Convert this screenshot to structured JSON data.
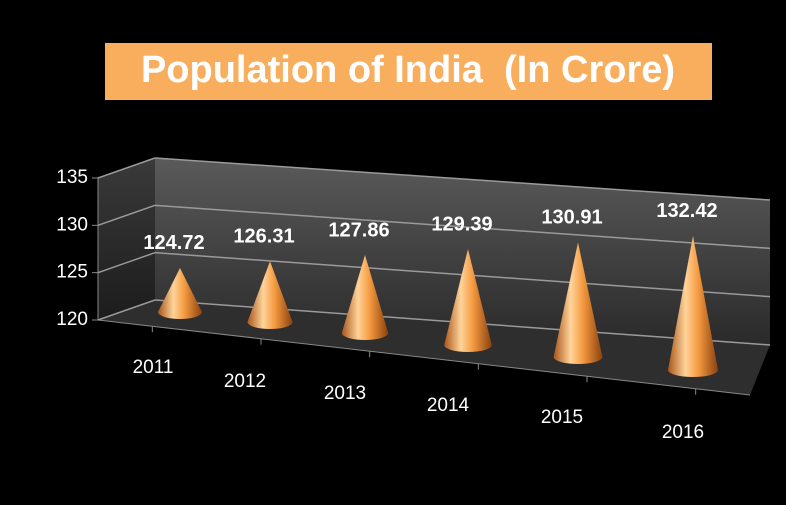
{
  "chart_data": {
    "type": "cone",
    "title": "Population of India  (In Crore)",
    "categories": [
      "2011",
      "2012",
      "2013",
      "2014",
      "2015",
      "2016"
    ],
    "values": [
      124.72,
      126.31,
      127.86,
      129.39,
      130.91,
      132.42
    ],
    "color": "#f39a3e",
    "ylim": [
      120,
      135
    ],
    "yticks": [
      120,
      125,
      130,
      135
    ],
    "grid": true
  }
}
